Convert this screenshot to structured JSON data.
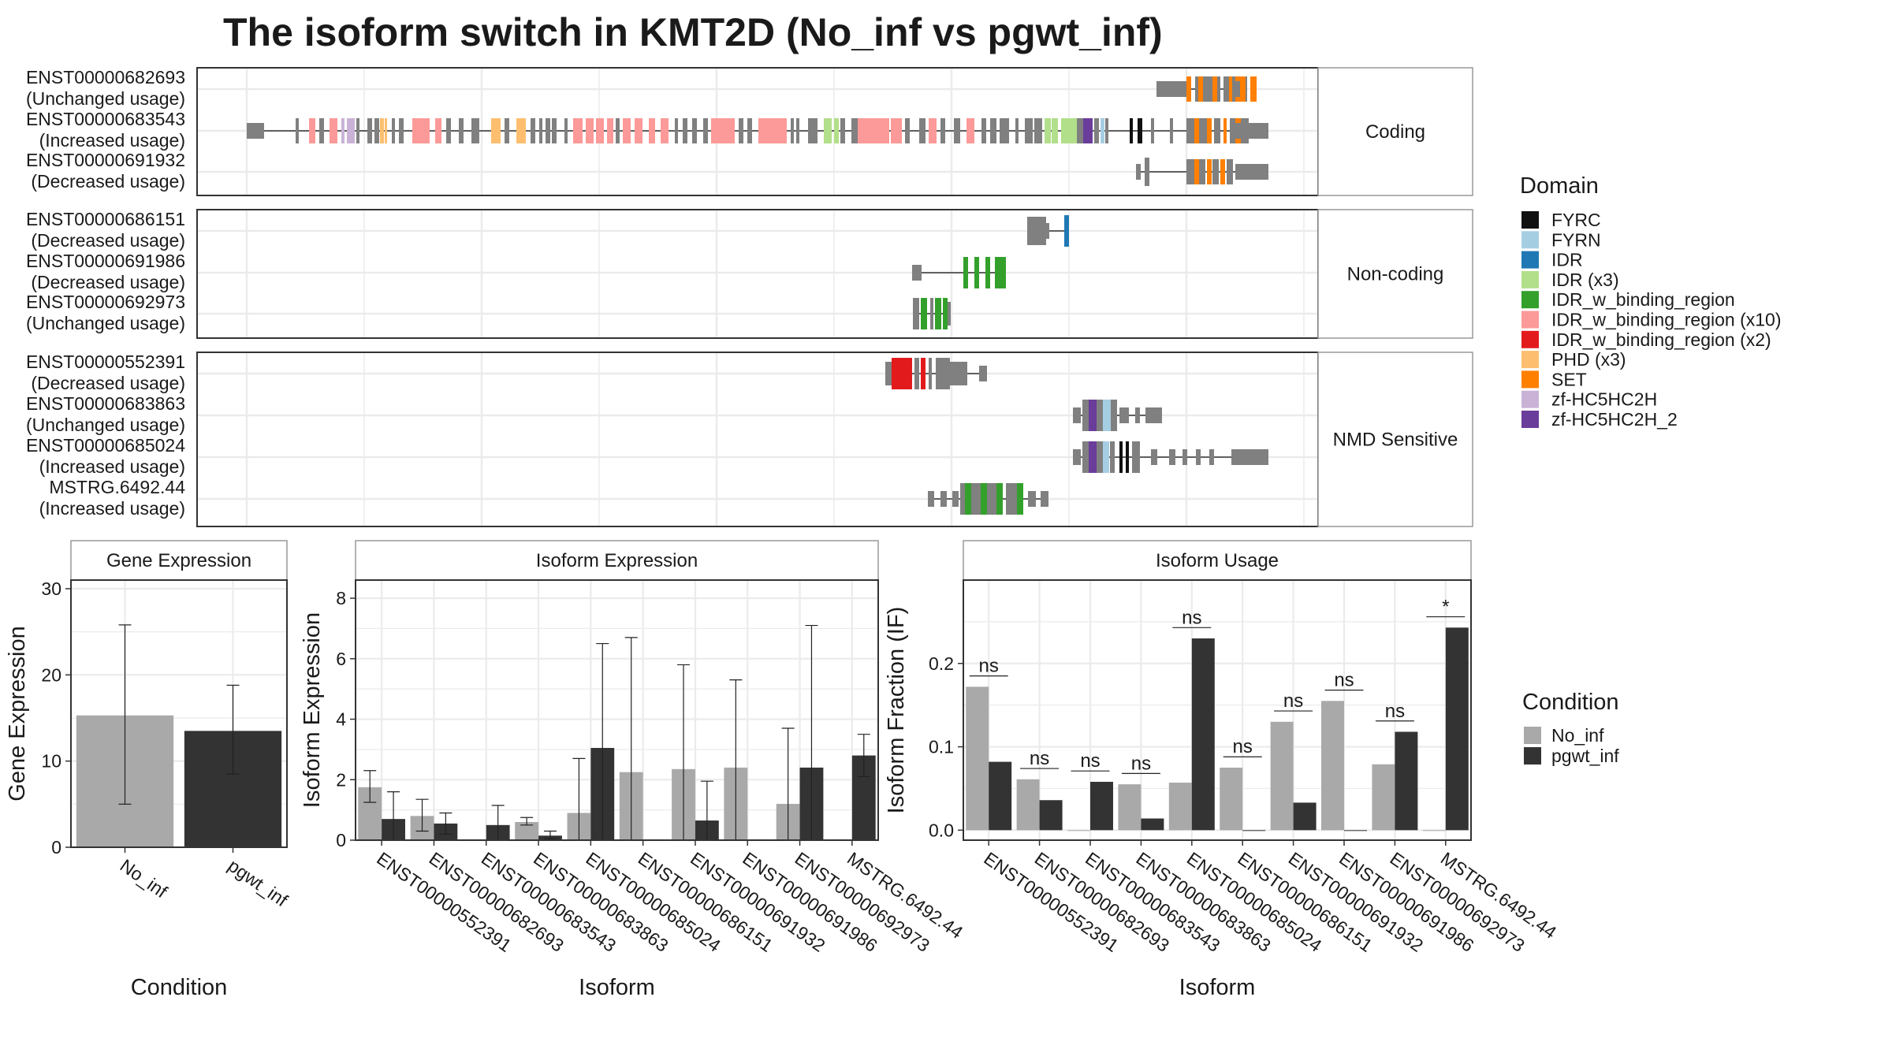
{
  "title": "The isoform switch in KMT2D (No_inf vs pgwt_inf)",
  "colors": {
    "No_inf": "#a9a9a9",
    "pgwt_inf": "#333333",
    "exon": "#808080",
    "grid": "#ebebeb",
    "panel_border": "#333333",
    "strip_border": "#999999"
  },
  "chart_data": [
    {
      "type": "gene-structure",
      "panels": [
        {
          "facet_label": "Coding",
          "transcripts": [
            {
              "id": "ENST00000682693",
              "status": "(Unchanged usage)"
            },
            {
              "id": "ENST00000683543",
              "status": "(Increased usage)"
            },
            {
              "id": "ENST00000691932",
              "status": "(Decreased usage)"
            }
          ]
        },
        {
          "facet_label": "Non-coding",
          "transcripts": [
            {
              "id": "ENST00000686151",
              "status": "(Decreased usage)"
            },
            {
              "id": "ENST00000691986",
              "status": "(Decreased usage)"
            },
            {
              "id": "ENST00000692973",
              "status": "(Unchanged usage)"
            }
          ]
        },
        {
          "facet_label": "NMD Sensitive",
          "transcripts": [
            {
              "id": "ENST00000552391",
              "status": "(Decreased usage)"
            },
            {
              "id": "ENST00000683863",
              "status": "(Unchanged usage)"
            },
            {
              "id": "ENST00000685024",
              "status": "(Increased usage)"
            },
            {
              "id": "MSTRG.6492.44",
              "status": "(Increased usage)"
            }
          ]
        }
      ],
      "legend": {
        "title": "Domain",
        "items": [
          {
            "label": "FYRC",
            "color": "#111111"
          },
          {
            "label": "FYRN",
            "color": "#a6cee3"
          },
          {
            "label": "IDR",
            "color": "#1f78b4"
          },
          {
            "label": "IDR (x3)",
            "color": "#b2df8a"
          },
          {
            "label": "IDR_w_binding_region",
            "color": "#33a02c"
          },
          {
            "label": "IDR_w_binding_region (x10)",
            "color": "#fb9a99"
          },
          {
            "label": "IDR_w_binding_region (x2)",
            "color": "#e31a1c"
          },
          {
            "label": "PHD (x3)",
            "color": "#fdbf6f"
          },
          {
            "label": "SET",
            "color": "#ff7f00"
          },
          {
            "label": "zf-HC5HC2H",
            "color": "#cab2d6"
          },
          {
            "label": "zf-HC5HC2H_2",
            "color": "#6a3d9a"
          }
        ]
      }
    },
    {
      "type": "bar",
      "facet_label": "Gene Expression",
      "xlabel": "Condition",
      "ylabel": "Gene Expression",
      "ylim": [
        0,
        31
      ],
      "yticks": [
        0,
        10,
        20,
        30
      ],
      "categories": [
        "No_inf",
        "pgwt_inf"
      ],
      "values": [
        15.3,
        13.5
      ],
      "err_low": [
        5.0,
        8.5
      ],
      "err_high": [
        25.8,
        18.8
      ]
    },
    {
      "type": "bar",
      "facet_label": "Isoform Expression",
      "xlabel": "Isoform",
      "ylabel": "Isoform Expression",
      "ylim": [
        0,
        8.6
      ],
      "yticks": [
        0,
        2,
        4,
        6,
        8
      ],
      "categories": [
        "ENST00000552391",
        "ENST00000682693",
        "ENST00000683543",
        "ENST00000683863",
        "ENST00000685024",
        "ENST00000686151",
        "ENST00000691932",
        "ENST00000691986",
        "ENST00000692973",
        "MSTRG.6492.44"
      ],
      "series": [
        {
          "name": "No_inf",
          "values": [
            1.75,
            0.8,
            0.0,
            0.6,
            0.9,
            2.25,
            2.35,
            2.4,
            1.2,
            0.0
          ],
          "err_low": [
            1.25,
            0.3,
            0.0,
            0.5,
            0.0,
            0.0,
            0.0,
            0.0,
            0.0,
            0.0
          ],
          "err_high": [
            2.3,
            1.35,
            0.0,
            0.75,
            2.7,
            6.7,
            5.8,
            5.3,
            3.7,
            0.0
          ]
        },
        {
          "name": "pgwt_inf",
          "values": [
            0.7,
            0.55,
            0.5,
            0.15,
            3.05,
            0.0,
            0.65,
            0.0,
            2.4,
            2.8
          ],
          "err_low": [
            0.0,
            0.2,
            0.0,
            0.05,
            0.0,
            0.0,
            0.0,
            0.0,
            0.0,
            2.1
          ],
          "err_high": [
            1.6,
            0.9,
            1.15,
            0.3,
            6.5,
            0.0,
            1.95,
            0.0,
            7.1,
            3.5
          ]
        }
      ]
    },
    {
      "type": "bar",
      "facet_label": "Isoform Usage",
      "xlabel": "Isoform",
      "ylabel": "Isoform Fraction (IF)",
      "ylim": [
        -0.012,
        0.3
      ],
      "yticks": [
        0.0,
        0.1,
        0.2
      ],
      "ytick_labels": [
        "0.0",
        "0.1",
        "0.2"
      ],
      "categories": [
        "ENST00000552391",
        "ENST00000682693",
        "ENST00000683543",
        "ENST00000683863",
        "ENST00000685024",
        "ENST00000686151",
        "ENST00000691932",
        "ENST00000691986",
        "ENST00000692973",
        "MSTRG.6492.44"
      ],
      "series": [
        {
          "name": "No_inf",
          "values": [
            0.172,
            0.061,
            0.0,
            0.055,
            0.057,
            0.075,
            0.13,
            0.155,
            0.079,
            0.0
          ]
        },
        {
          "name": "pgwt_inf",
          "values": [
            0.082,
            0.036,
            0.058,
            0.014,
            0.23,
            0.0,
            0.033,
            0.0,
            0.118,
            0.243
          ]
        }
      ],
      "significance": [
        "ns",
        "ns",
        "ns",
        "ns",
        "ns",
        "ns",
        "ns",
        "ns",
        "ns",
        "*"
      ],
      "significance_y": [
        0.185,
        0.074,
        0.071,
        0.068,
        0.243,
        0.088,
        0.143,
        0.168,
        0.131,
        0.256
      ]
    }
  ],
  "legend_condition": {
    "title": "Condition",
    "items": [
      {
        "label": "No_inf",
        "color": "#a9a9a9"
      },
      {
        "label": "pgwt_inf",
        "color": "#333333"
      }
    ]
  }
}
